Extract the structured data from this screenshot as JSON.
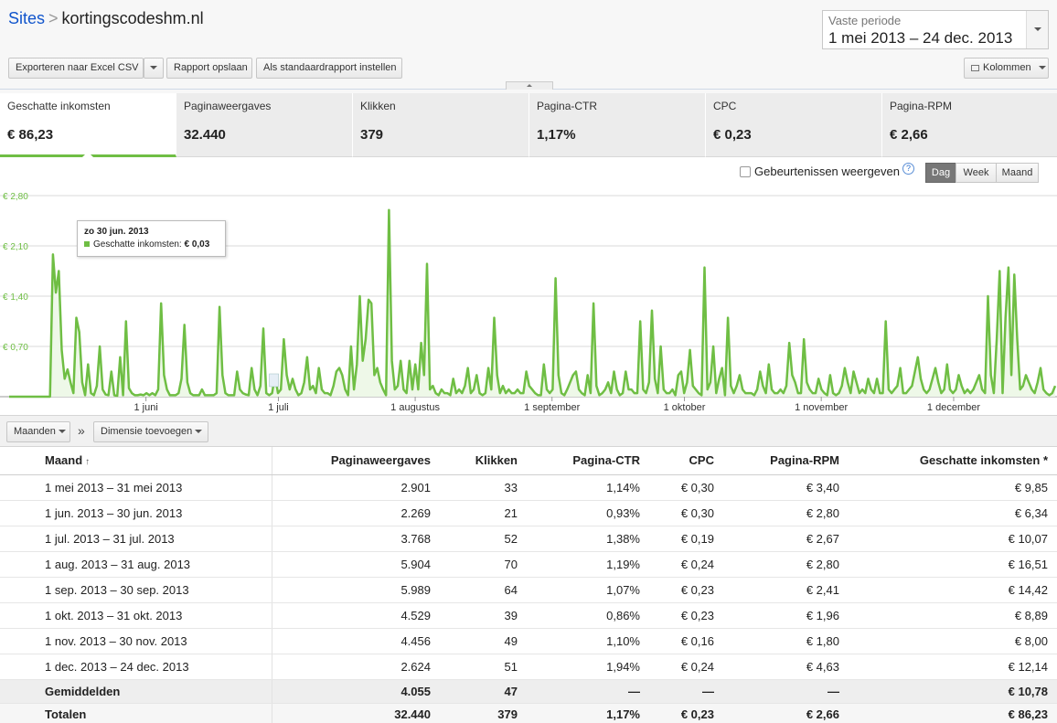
{
  "breadcrumb": {
    "root": "Sites",
    "separator": ">",
    "site": "kortingscodeshm.nl"
  },
  "toolbar": {
    "export_label": "Exporteren naar Excel CSV",
    "save_label": "Rapport opslaan",
    "default_label": "Als standaardrapport instellen",
    "columns_label": "Kolommen"
  },
  "date_range": {
    "label": "Vaste periode",
    "value": "1 mei 2013 – 24 dec. 2013"
  },
  "metrics": [
    {
      "label": "Geschatte inkomsten",
      "value": "€ 86,23"
    },
    {
      "label": "Paginaweergaves",
      "value": "32.440"
    },
    {
      "label": "Klikken",
      "value": "379"
    },
    {
      "label": "Pagina-CTR",
      "value": "1,17%"
    },
    {
      "label": "CPC",
      "value": "€ 0,23"
    },
    {
      "label": "Pagina-RPM",
      "value": "€ 2,66"
    }
  ],
  "chart_controls": {
    "events_label": "Gebeurtenissen weergeven",
    "events_checked": false,
    "granularity": [
      "Dag",
      "Week",
      "Maand"
    ],
    "granularity_selected": "Dag"
  },
  "tooltip": {
    "date": "zo 30 jun. 2013",
    "series": "Geschatte inkomsten:",
    "value": "€ 0,03"
  },
  "chart_data": {
    "type": "area",
    "ylim": [
      0,
      2.8
    ],
    "y_ticks": [
      0.7,
      1.4,
      2.1,
      2.8
    ],
    "y_tick_labels": [
      "€ 0,70",
      "€ 1,40",
      "€ 2,10",
      "€ 2,80"
    ],
    "x_tick_labels": [
      "1 juni",
      "1 juli",
      "1 augustus",
      "1 september",
      "1 oktober",
      "1 november",
      "1 december"
    ],
    "x_tick_dates": [
      "2013-06-01",
      "2013-07-01",
      "2013-08-01",
      "2013-09-01",
      "2013-10-01",
      "2013-11-01",
      "2013-12-01"
    ],
    "grid": true,
    "colors": {
      "line": "#6fbe44",
      "fill": "#eef8e8"
    },
    "x_start": "2013-05-01",
    "x_end": "2013-12-24",
    "series": [
      {
        "name": "Geschatte inkomsten",
        "values": [
          0,
          0,
          0,
          0,
          0,
          0,
          0,
          0,
          0,
          0,
          0,
          0,
          0,
          0,
          0,
          1.98,
          1.45,
          1.75,
          0.65,
          0.25,
          0.38,
          0.2,
          0.05,
          1.1,
          0.9,
          0.2,
          0.02,
          0.45,
          0.05,
          0.02,
          0.15,
          0.7,
          0.1,
          0.03,
          0.02,
          0.35,
          0.02,
          0.01,
          0.55,
          0.02,
          1.05,
          0.12,
          0.05,
          0.02,
          0.02,
          0.03,
          0.02,
          0.05,
          0.02,
          0.05,
          0.02,
          0.1,
          1.3,
          0.3,
          0.1,
          0.02,
          0.02,
          0.02,
          0.05,
          0.25,
          1.0,
          0.2,
          0.05,
          0.02,
          0.02,
          0.02,
          0.1,
          0.02,
          0.02,
          0.02,
          0.02,
          0.05,
          1.25,
          0.3,
          0.05,
          0.02,
          0.02,
          0.02,
          0.35,
          0.1,
          0.05,
          0.03,
          0.02,
          0.4,
          0.1,
          0.02,
          0.15,
          0.95,
          0.05,
          0.02,
          0.05,
          0.3,
          0.05,
          0.1,
          0.8,
          0.3,
          0.1,
          0.25,
          0.1,
          0.02,
          0.05,
          0.2,
          0.55,
          0.1,
          0.15,
          0.05,
          0.4,
          0.1,
          0.05,
          0.05,
          0.02,
          0.15,
          0.35,
          0.4,
          0.3,
          0.1,
          0.02,
          0.7,
          0.1,
          0.45,
          1.4,
          0.5,
          0.8,
          1.35,
          1.3,
          0.3,
          0.4,
          0.2,
          0.1,
          0.02,
          2.6,
          0.5,
          0.1,
          0.15,
          0.5,
          0.1,
          0.05,
          0.5,
          0.1,
          0.45,
          0.1,
          0.75,
          0.3,
          1.85,
          0.1,
          0.15,
          0.05,
          0.02,
          0.1,
          0.05,
          0.05,
          0.02,
          0.25,
          0.05,
          0.1,
          0.05,
          0.15,
          0.4,
          0.05,
          0.1,
          0.3,
          0.05,
          0.02,
          0.05,
          0.4,
          0.1,
          1.1,
          0.3,
          0.05,
          0.15,
          0.05,
          0.1,
          0.05,
          0.05,
          0.1,
          0.05,
          0.05,
          0.35,
          0.15,
          0.1,
          0.05,
          0.02,
          0.02,
          0.45,
          0.1,
          0.05,
          0.1,
          1.65,
          0.3,
          0.05,
          0.02,
          0.1,
          0.2,
          0.3,
          0.35,
          0.1,
          0.05,
          0.02,
          0.3,
          0.05,
          1.3,
          0.15,
          0.02,
          0.05,
          0.1,
          0.2,
          0.05,
          0.35,
          0.1,
          0.02,
          0.05,
          0.35,
          0.1,
          0.1,
          0.05,
          0.05,
          1.05,
          0.1,
          0.05,
          0.2,
          1.2,
          0.25,
          0.05,
          0.7,
          0.1,
          0.05,
          0.05,
          0.1,
          0.02,
          0.3,
          0.35,
          0.05,
          0.2,
          0.65,
          0.15,
          0.1,
          0.05,
          0.02,
          1.8,
          0.1,
          0.2,
          0.7,
          0.05,
          0.25,
          0.4,
          0.02,
          1.1,
          0.15,
          0.05,
          0.15,
          0.3,
          0.1,
          0.05,
          0.05,
          0.05,
          0.02,
          0.1,
          0.35,
          0.15,
          0.05,
          0.45,
          0.1,
          0.05,
          0.05,
          0.1,
          0.05,
          0.15,
          0.75,
          0.3,
          0.2,
          0.05,
          0.05,
          0.8,
          0.2,
          0.1,
          0.05,
          0.05,
          0.25,
          0.1,
          0.05,
          0.02,
          0.3,
          0.05,
          0.02,
          0.05,
          0.15,
          0.4,
          0.2,
          0.05,
          0.35,
          0.2,
          0.05,
          0.1,
          0.05,
          0.25,
          0.1,
          0.05,
          0.25,
          0.05,
          0.05,
          1.05,
          0.1,
          0.05,
          0.1,
          0.15,
          0.4,
          0.05,
          0.05,
          0.1,
          0.15,
          0.35,
          0.55,
          0.25,
          0.1,
          0.05,
          0.1,
          0.25,
          0.4,
          0.2,
          0.05,
          0.1,
          0.45,
          0.1,
          0.05,
          0.1,
          0.3,
          0.15,
          0.05,
          0.1,
          0.05,
          0.1,
          0.2,
          0.3,
          0.1,
          0.05,
          1.4,
          0.3,
          0.05,
          0.8,
          1.75,
          0.05,
          1.1,
          1.8,
          0.3,
          1.7,
          0.8,
          0.1,
          0.15,
          0.3,
          0.2,
          0.1,
          0.05,
          0.2,
          0.4,
          0.1,
          0.05,
          0.02,
          0.05,
          0.15
        ]
      }
    ]
  },
  "table_toolbar": {
    "dimension_select": "Maanden",
    "add_dimension": "Dimensie toevoegen",
    "separator": "»"
  },
  "table": {
    "columns": [
      "Maand",
      "Paginaweergaves",
      "Klikken",
      "Pagina-CTR",
      "CPC",
      "Pagina-RPM",
      "Geschatte inkomsten *"
    ],
    "sort_indicator": "↑",
    "rows": [
      [
        "1 mei 2013 – 31 mei 2013",
        "2.901",
        "33",
        "1,14%",
        "€ 0,30",
        "€ 3,40",
        "€ 9,85"
      ],
      [
        "1 jun. 2013 – 30 jun. 2013",
        "2.269",
        "21",
        "0,93%",
        "€ 0,30",
        "€ 2,80",
        "€ 6,34"
      ],
      [
        "1 jul. 2013 – 31 jul. 2013",
        "3.768",
        "52",
        "1,38%",
        "€ 0,19",
        "€ 2,67",
        "€ 10,07"
      ],
      [
        "1 aug. 2013 – 31 aug. 2013",
        "5.904",
        "70",
        "1,19%",
        "€ 0,24",
        "€ 2,80",
        "€ 16,51"
      ],
      [
        "1 sep. 2013 – 30 sep. 2013",
        "5.989",
        "64",
        "1,07%",
        "€ 0,23",
        "€ 2,41",
        "€ 14,42"
      ],
      [
        "1 okt. 2013 – 31 okt. 2013",
        "4.529",
        "39",
        "0,86%",
        "€ 0,23",
        "€ 1,96",
        "€ 8,89"
      ],
      [
        "1 nov. 2013 – 30 nov. 2013",
        "4.456",
        "49",
        "1,10%",
        "€ 0,16",
        "€ 1,80",
        "€ 8,00"
      ],
      [
        "1 dec. 2013 – 24 dec. 2013",
        "2.624",
        "51",
        "1,94%",
        "€ 0,24",
        "€ 4,63",
        "€ 12,14"
      ]
    ],
    "averages": [
      "Gemiddelden",
      "4.055",
      "47",
      "—",
      "—",
      "—",
      "€ 10,78"
    ],
    "totals": [
      "Totalen",
      "32.440",
      "379",
      "1,17%",
      "€ 0,23",
      "€ 2,66",
      "€ 86,23"
    ]
  }
}
